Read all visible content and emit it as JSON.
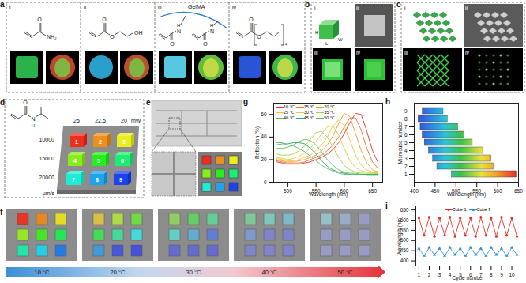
{
  "figure": {
    "a": {
      "letter": "a",
      "subpanels": [
        "i",
        "ii",
        "iii",
        "iv"
      ],
      "chem": [
        [
          "O",
          "NH₂"
        ],
        [
          "O",
          "O",
          "OH"
        ],
        [
          "GelMA",
          "O",
          "N",
          "H",
          "O",
          "N",
          "H"
        ],
        [
          "O",
          "O",
          "4"
        ]
      ]
    },
    "b": {
      "letter": "b",
      "subpanels": [
        "i",
        "ii",
        "iii",
        "iv"
      ],
      "dimensions": [
        "L",
        "W",
        "H"
      ]
    },
    "c": {
      "letter": "c",
      "subpanels": [
        "i",
        "ii",
        "iii",
        "iv"
      ]
    },
    "d": {
      "letter": "d",
      "chem": [
        "O",
        "N",
        "H"
      ],
      "power": {
        "values": [
          25,
          22.5,
          20
        ],
        "unit": "mW"
      },
      "speed": {
        "values": [
          10000,
          15000,
          20000
        ],
        "unit": "μm/s"
      },
      "cubes": [
        1,
        2,
        3,
        4,
        5,
        6,
        7,
        8,
        9
      ]
    },
    "e": {
      "letter": "e"
    },
    "f": {
      "letter": "f",
      "temperatures": [
        "10 °C",
        "20 °C",
        "30 °C",
        "40 °C",
        "50 °C"
      ]
    }
  },
  "chart_data": [
    {
      "letter": "g",
      "type": "line",
      "x_label": "Wavelength (nm)",
      "y_label": "Reflection (%)",
      "x": [
        480,
        490,
        500,
        510,
        520,
        530,
        540,
        550,
        560,
        570,
        580,
        590,
        600,
        610,
        620,
        630,
        640,
        650,
        660
      ],
      "series": [
        {
          "name": "10 ℃",
          "color": "#e8302a",
          "values": [
            18,
            17,
            16,
            16,
            16,
            17,
            18,
            20,
            22,
            25,
            29,
            35,
            43,
            53,
            61,
            60,
            45,
            28,
            17
          ]
        },
        {
          "name": "15 ℃",
          "color": "#f26b2a",
          "values": [
            19,
            18,
            17,
            17,
            17,
            18,
            20,
            22,
            24,
            28,
            33,
            40,
            49,
            57,
            57,
            46,
            30,
            18,
            12
          ]
        },
        {
          "name": "20 ℃",
          "color": "#f39a2b",
          "values": [
            20,
            19,
            18,
            18,
            19,
            20,
            22,
            24,
            28,
            33,
            41,
            52,
            61,
            58,
            43,
            28,
            17,
            11,
            9
          ]
        },
        {
          "name": "25 ℃",
          "color": "#f2c12e",
          "values": [
            21,
            20,
            19,
            19,
            20,
            22,
            24,
            28,
            33,
            40,
            50,
            55,
            50,
            37,
            24,
            15,
            11,
            9,
            8
          ]
        },
        {
          "name": "30 ℃",
          "color": "#d4d43a",
          "values": [
            22,
            21,
            20,
            21,
            23,
            26,
            30,
            36,
            43,
            49,
            50,
            42,
            30,
            19,
            13,
            10,
            9,
            8,
            8
          ]
        },
        {
          "name": "35 ℃",
          "color": "#a6d14a",
          "values": [
            25,
            24,
            24,
            25,
            28,
            32,
            38,
            44,
            45,
            40,
            31,
            22,
            15,
            11,
            9,
            8,
            8,
            8,
            8
          ]
        },
        {
          "name": "40 ℃",
          "color": "#5cbf4f",
          "values": [
            30,
            30,
            31,
            33,
            36,
            38,
            37,
            33,
            27,
            20,
            15,
            11,
            9,
            8,
            8,
            7,
            7,
            7,
            7
          ]
        },
        {
          "name": "45 ℃",
          "color": "#2ea55a",
          "values": [
            33,
            34,
            34,
            35,
            35,
            34,
            30,
            25,
            19,
            14,
            11,
            9,
            8,
            7,
            7,
            7,
            7,
            7,
            7
          ]
        },
        {
          "name": "50 ℃",
          "color": "#58b96e",
          "values": [
            35,
            35,
            33,
            32,
            30,
            27,
            23,
            19,
            15,
            12,
            10,
            8,
            7,
            7,
            7,
            7,
            6,
            6,
            6
          ]
        }
      ],
      "xlim": [
        475,
        668
      ],
      "xticks": [
        500,
        550,
        600,
        650
      ],
      "ylim": [
        0,
        70
      ],
      "yticks": [
        0,
        20,
        40,
        60
      ],
      "legend": "top-left"
    },
    {
      "letter": "h",
      "type": "bar",
      "orientation": "horizontal",
      "x_label": "Wavelength (nm)",
      "y_label": "Microcube number",
      "categories": [
        1,
        2,
        3,
        4,
        5,
        6,
        7,
        8,
        9
      ],
      "low": [
        490,
        455,
        445,
        435,
        425,
        420,
        415,
        410,
        420
      ],
      "high": [
        645,
        590,
        585,
        565,
        540,
        520,
        505,
        480,
        470
      ],
      "xlim": [
        400,
        650
      ],
      "xticks": [
        400,
        450,
        500,
        550,
        600,
        650
      ]
    },
    {
      "letter": "i",
      "type": "line",
      "x_label": "Cycle number",
      "y_label": "Wavelength (nm)",
      "x": [
        1,
        1.5,
        2,
        2.5,
        3,
        3.5,
        4,
        4.5,
        5,
        5.5,
        6,
        6.5,
        7,
        7.5,
        8,
        8.5,
        9,
        9.5,
        10,
        10.5
      ],
      "series": [
        {
          "name": "Cube 1",
          "color": "#e8302a",
          "marker": "circle",
          "values": [
            610,
            525,
            615,
            520,
            610,
            525,
            615,
            520,
            610,
            525,
            610,
            520,
            615,
            525,
            610,
            520,
            615,
            525,
            610,
            520
          ]
        },
        {
          "name": "Cube 9",
          "color": "#2f8fd8",
          "marker": "triangle",
          "values": [
            460,
            425,
            465,
            430,
            460,
            425,
            465,
            430,
            460,
            425,
            465,
            430,
            460,
            425,
            465,
            430,
            460,
            425,
            465,
            430
          ]
        }
      ],
      "xlim": [
        0.7,
        10.8
      ],
      "xticks": [
        1,
        2,
        3,
        4,
        5,
        6,
        7,
        8,
        9,
        10
      ],
      "ylim": [
        375,
        670
      ],
      "yticks": [
        400,
        450,
        500,
        550,
        600,
        650
      ],
      "legend": "top"
    }
  ]
}
